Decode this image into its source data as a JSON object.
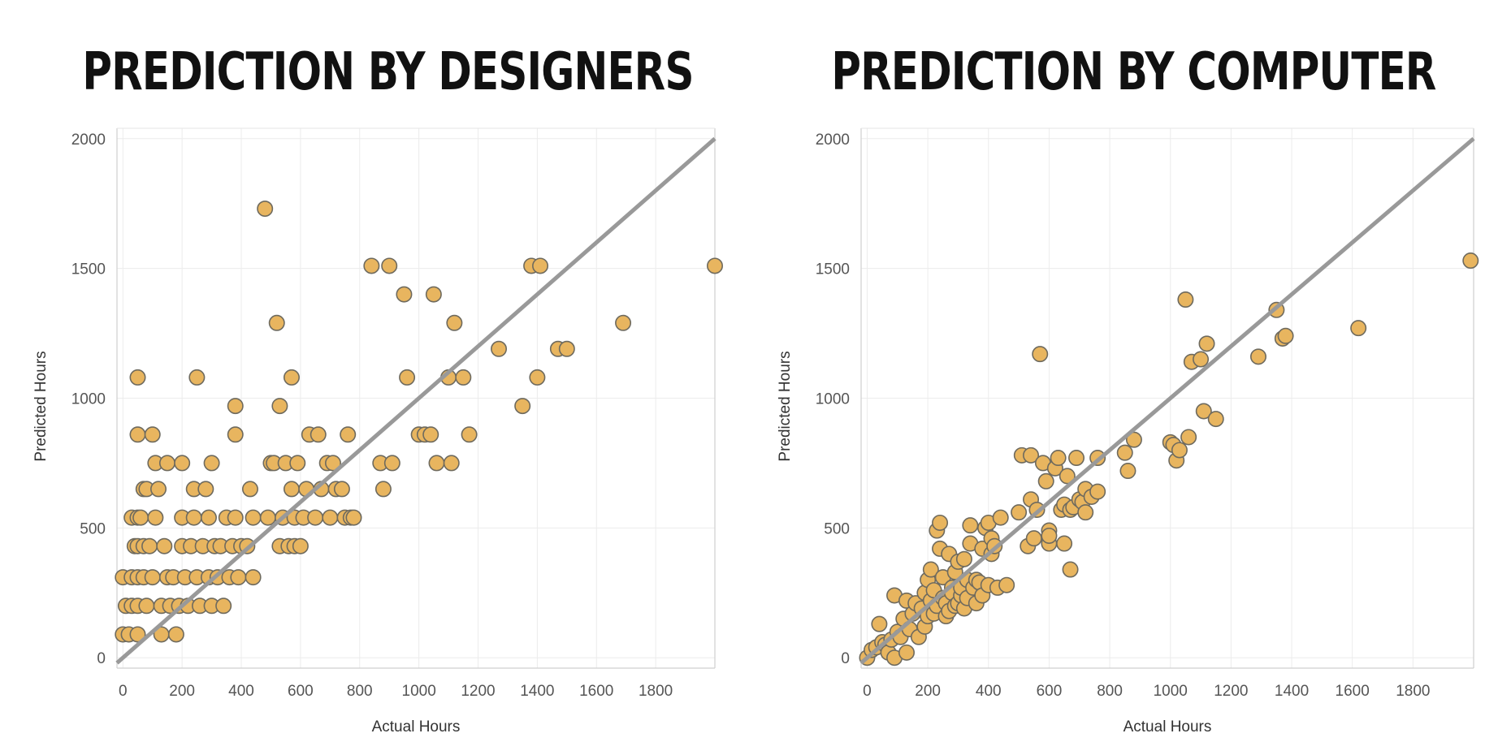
{
  "chart_data": [
    {
      "type": "scatter",
      "title": "PREDICTION BY DESIGNERS",
      "xlabel": "Actual Hours",
      "ylabel": "Predicted Hours",
      "xlim": [
        -20,
        2000
      ],
      "ylim": [
        -40,
        2040
      ],
      "xticks": [
        0,
        200,
        400,
        600,
        800,
        1000,
        1200,
        1400,
        1600,
        1800
      ],
      "yticks": [
        0,
        500,
        1000,
        1500,
        2000
      ],
      "grid": true,
      "reference_line": {
        "from": [
          -20,
          -20
        ],
        "to": [
          2000,
          2000
        ],
        "color": "#999999"
      },
      "marker_color": "#e8b55f",
      "marker_edge": "#6e6a5e",
      "points": [
        [
          0,
          90
        ],
        [
          0,
          310
        ],
        [
          10,
          200
        ],
        [
          20,
          90
        ],
        [
          30,
          310
        ],
        [
          30,
          200
        ],
        [
          30,
          540
        ],
        [
          40,
          430
        ],
        [
          50,
          90
        ],
        [
          50,
          200
        ],
        [
          50,
          310
        ],
        [
          50,
          430
        ],
        [
          50,
          540
        ],
        [
          50,
          860
        ],
        [
          50,
          1080
        ],
        [
          60,
          540
        ],
        [
          70,
          650
        ],
        [
          70,
          430
        ],
        [
          70,
          310
        ],
        [
          80,
          200
        ],
        [
          80,
          650
        ],
        [
          90,
          430
        ],
        [
          100,
          310
        ],
        [
          100,
          860
        ],
        [
          110,
          750
        ],
        [
          110,
          540
        ],
        [
          120,
          650
        ],
        [
          130,
          200
        ],
        [
          130,
          90
        ],
        [
          140,
          430
        ],
        [
          150,
          310
        ],
        [
          150,
          750
        ],
        [
          160,
          200
        ],
        [
          170,
          310
        ],
        [
          180,
          90
        ],
        [
          190,
          200
        ],
        [
          200,
          430
        ],
        [
          200,
          540
        ],
        [
          200,
          750
        ],
        [
          210,
          310
        ],
        [
          220,
          200
        ],
        [
          230,
          430
        ],
        [
          240,
          540
        ],
        [
          240,
          650
        ],
        [
          250,
          310
        ],
        [
          250,
          1080
        ],
        [
          260,
          200
        ],
        [
          270,
          430
        ],
        [
          280,
          650
        ],
        [
          290,
          540
        ],
        [
          290,
          310
        ],
        [
          300,
          200
        ],
        [
          300,
          750
        ],
        [
          310,
          430
        ],
        [
          320,
          310
        ],
        [
          330,
          430
        ],
        [
          340,
          200
        ],
        [
          350,
          540
        ],
        [
          360,
          310
        ],
        [
          370,
          430
        ],
        [
          380,
          860
        ],
        [
          380,
          540
        ],
        [
          380,
          970
        ],
        [
          390,
          310
        ],
        [
          400,
          430
        ],
        [
          420,
          430
        ],
        [
          430,
          650
        ],
        [
          440,
          310
        ],
        [
          440,
          540
        ],
        [
          480,
          1730
        ],
        [
          490,
          540
        ],
        [
          500,
          750
        ],
        [
          510,
          750
        ],
        [
          520,
          1290
        ],
        [
          530,
          970
        ],
        [
          530,
          430
        ],
        [
          540,
          540
        ],
        [
          550,
          750
        ],
        [
          560,
          430
        ],
        [
          570,
          1080
        ],
        [
          570,
          650
        ],
        [
          580,
          540
        ],
        [
          580,
          430
        ],
        [
          590,
          750
        ],
        [
          600,
          430
        ],
        [
          610,
          540
        ],
        [
          620,
          650
        ],
        [
          630,
          860
        ],
        [
          650,
          540
        ],
        [
          660,
          860
        ],
        [
          670,
          650
        ],
        [
          690,
          750
        ],
        [
          700,
          540
        ],
        [
          710,
          750
        ],
        [
          720,
          650
        ],
        [
          740,
          650
        ],
        [
          750,
          540
        ],
        [
          760,
          860
        ],
        [
          770,
          540
        ],
        [
          780,
          540
        ],
        [
          840,
          1510
        ],
        [
          870,
          750
        ],
        [
          880,
          650
        ],
        [
          900,
          1510
        ],
        [
          910,
          750
        ],
        [
          950,
          1400
        ],
        [
          960,
          1080
        ],
        [
          1000,
          860
        ],
        [
          1020,
          860
        ],
        [
          1040,
          860
        ],
        [
          1050,
          1400
        ],
        [
          1060,
          750
        ],
        [
          1100,
          1080
        ],
        [
          1110,
          750
        ],
        [
          1120,
          1290
        ],
        [
          1150,
          1080
        ],
        [
          1170,
          860
        ],
        [
          1270,
          1190
        ],
        [
          1350,
          970
        ],
        [
          1380,
          1510
        ],
        [
          1400,
          1080
        ],
        [
          1410,
          1510
        ],
        [
          1470,
          1190
        ],
        [
          1500,
          1190
        ],
        [
          1690,
          1290
        ],
        [
          2000,
          1510
        ]
      ]
    },
    {
      "type": "scatter",
      "title": "PREDICTION BY COMPUTER",
      "xlabel": "Actual Hours",
      "ylabel": "Predicted Hours",
      "xlim": [
        -20,
        2000
      ],
      "ylim": [
        -40,
        2040
      ],
      "xticks": [
        0,
        200,
        400,
        600,
        800,
        1000,
        1200,
        1400,
        1600,
        1800
      ],
      "yticks": [
        0,
        500,
        1000,
        1500,
        2000
      ],
      "grid": true,
      "reference_line": {
        "from": [
          -20,
          -20
        ],
        "to": [
          2000,
          2000
        ],
        "color": "#999999"
      },
      "marker_color": "#e8b55f",
      "marker_edge": "#6e6a5e",
      "points": [
        [
          0,
          0
        ],
        [
          15,
          30
        ],
        [
          30,
          40
        ],
        [
          40,
          130
        ],
        [
          50,
          60
        ],
        [
          60,
          50
        ],
        [
          70,
          20
        ],
        [
          80,
          70
        ],
        [
          90,
          240
        ],
        [
          90,
          0
        ],
        [
          100,
          100
        ],
        [
          110,
          80
        ],
        [
          120,
          150
        ],
        [
          130,
          220
        ],
        [
          130,
          20
        ],
        [
          140,
          110
        ],
        [
          150,
          170
        ],
        [
          160,
          210
        ],
        [
          170,
          80
        ],
        [
          180,
          190
        ],
        [
          190,
          250
        ],
        [
          190,
          120
        ],
        [
          200,
          300
        ],
        [
          200,
          160
        ],
        [
          210,
          340
        ],
        [
          210,
          220
        ],
        [
          220,
          170
        ],
        [
          220,
          260
        ],
        [
          230,
          200
        ],
        [
          230,
          490
        ],
        [
          240,
          420
        ],
        [
          240,
          520
        ],
        [
          250,
          230
        ],
        [
          250,
          310
        ],
        [
          260,
          210
        ],
        [
          260,
          160
        ],
        [
          270,
          180
        ],
        [
          270,
          400
        ],
        [
          280,
          270
        ],
        [
          280,
          250
        ],
        [
          290,
          200
        ],
        [
          290,
          330
        ],
        [
          300,
          370
        ],
        [
          300,
          210
        ],
        [
          310,
          240
        ],
        [
          310,
          270
        ],
        [
          320,
          190
        ],
        [
          320,
          380
        ],
        [
          330,
          300
        ],
        [
          330,
          230
        ],
        [
          340,
          440
        ],
        [
          340,
          510
        ],
        [
          350,
          270
        ],
        [
          360,
          300
        ],
        [
          360,
          210
        ],
        [
          370,
          290
        ],
        [
          380,
          240
        ],
        [
          380,
          420
        ],
        [
          390,
          500
        ],
        [
          400,
          520
        ],
        [
          400,
          280
        ],
        [
          410,
          400
        ],
        [
          410,
          460
        ],
        [
          420,
          430
        ],
        [
          430,
          270
        ],
        [
          440,
          540
        ],
        [
          460,
          280
        ],
        [
          500,
          560
        ],
        [
          510,
          780
        ],
        [
          530,
          430
        ],
        [
          540,
          780
        ],
        [
          540,
          610
        ],
        [
          550,
          460
        ],
        [
          560,
          570
        ],
        [
          570,
          1170
        ],
        [
          580,
          750
        ],
        [
          590,
          680
        ],
        [
          600,
          490
        ],
        [
          600,
          440
        ],
        [
          600,
          470
        ],
        [
          620,
          730
        ],
        [
          630,
          770
        ],
        [
          640,
          570
        ],
        [
          650,
          440
        ],
        [
          650,
          590
        ],
        [
          660,
          700
        ],
        [
          670,
          570
        ],
        [
          670,
          340
        ],
        [
          680,
          580
        ],
        [
          690,
          770
        ],
        [
          700,
          610
        ],
        [
          710,
          600
        ],
        [
          720,
          560
        ],
        [
          720,
          650
        ],
        [
          740,
          620
        ],
        [
          760,
          770
        ],
        [
          760,
          640
        ],
        [
          850,
          790
        ],
        [
          860,
          720
        ],
        [
          880,
          840
        ],
        [
          1000,
          830
        ],
        [
          1010,
          820
        ],
        [
          1020,
          760
        ],
        [
          1030,
          800
        ],
        [
          1050,
          1380
        ],
        [
          1060,
          850
        ],
        [
          1070,
          1140
        ],
        [
          1100,
          1150
        ],
        [
          1110,
          950
        ],
        [
          1120,
          1210
        ],
        [
          1150,
          920
        ],
        [
          1290,
          1160
        ],
        [
          1350,
          1340
        ],
        [
          1370,
          1230
        ],
        [
          1380,
          1240
        ],
        [
          1620,
          1270
        ],
        [
          1990,
          1530
        ]
      ]
    }
  ]
}
